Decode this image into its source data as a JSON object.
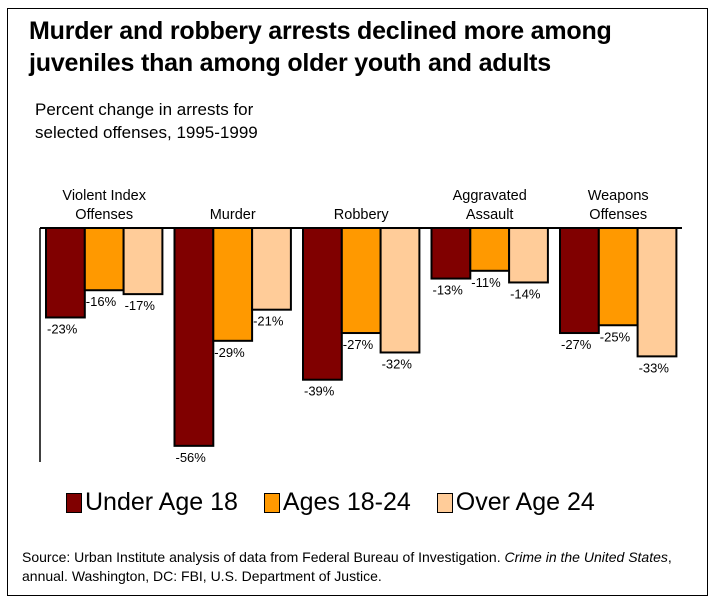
{
  "chart_data": {
    "type": "bar",
    "title": "Murder and robbery arrests declined more among juveniles than among older youth and adults",
    "subtitle": [
      "Percent change in arrests for",
      "selected offenses, 1995-1999"
    ],
    "xlabel": "",
    "ylabel": "",
    "ylim": [
      -60,
      0
    ],
    "grid": false,
    "legend_position": "bottom",
    "categories": [
      [
        "Violent Index",
        "Offenses"
      ],
      [
        "Murder"
      ],
      [
        "Robbery"
      ],
      [
        "Aggravated",
        "Assault"
      ],
      [
        "Weapons",
        "Offenses"
      ]
    ],
    "series": [
      {
        "name": "Under Age 18",
        "color": "#800000",
        "values": [
          -23,
          -56,
          -39,
          -13,
          -27
        ]
      },
      {
        "name": "Ages 18-24",
        "color": "#FF9900",
        "values": [
          -16,
          -29,
          -27,
          -11,
          -25
        ]
      },
      {
        "name": "Over Age 24",
        "color": "#FFCC99",
        "values": [
          -17,
          -21,
          -32,
          -14,
          -33
        ]
      }
    ],
    "value_label_suffix": "%"
  },
  "source": {
    "prefix": "Source: Urban Institute analysis of data from Federal Bureau of Investigation. ",
    "italic": "Crime in the United States",
    "suffix": ", annual.  Washington, DC: FBI, U.S. Department of Justice."
  }
}
